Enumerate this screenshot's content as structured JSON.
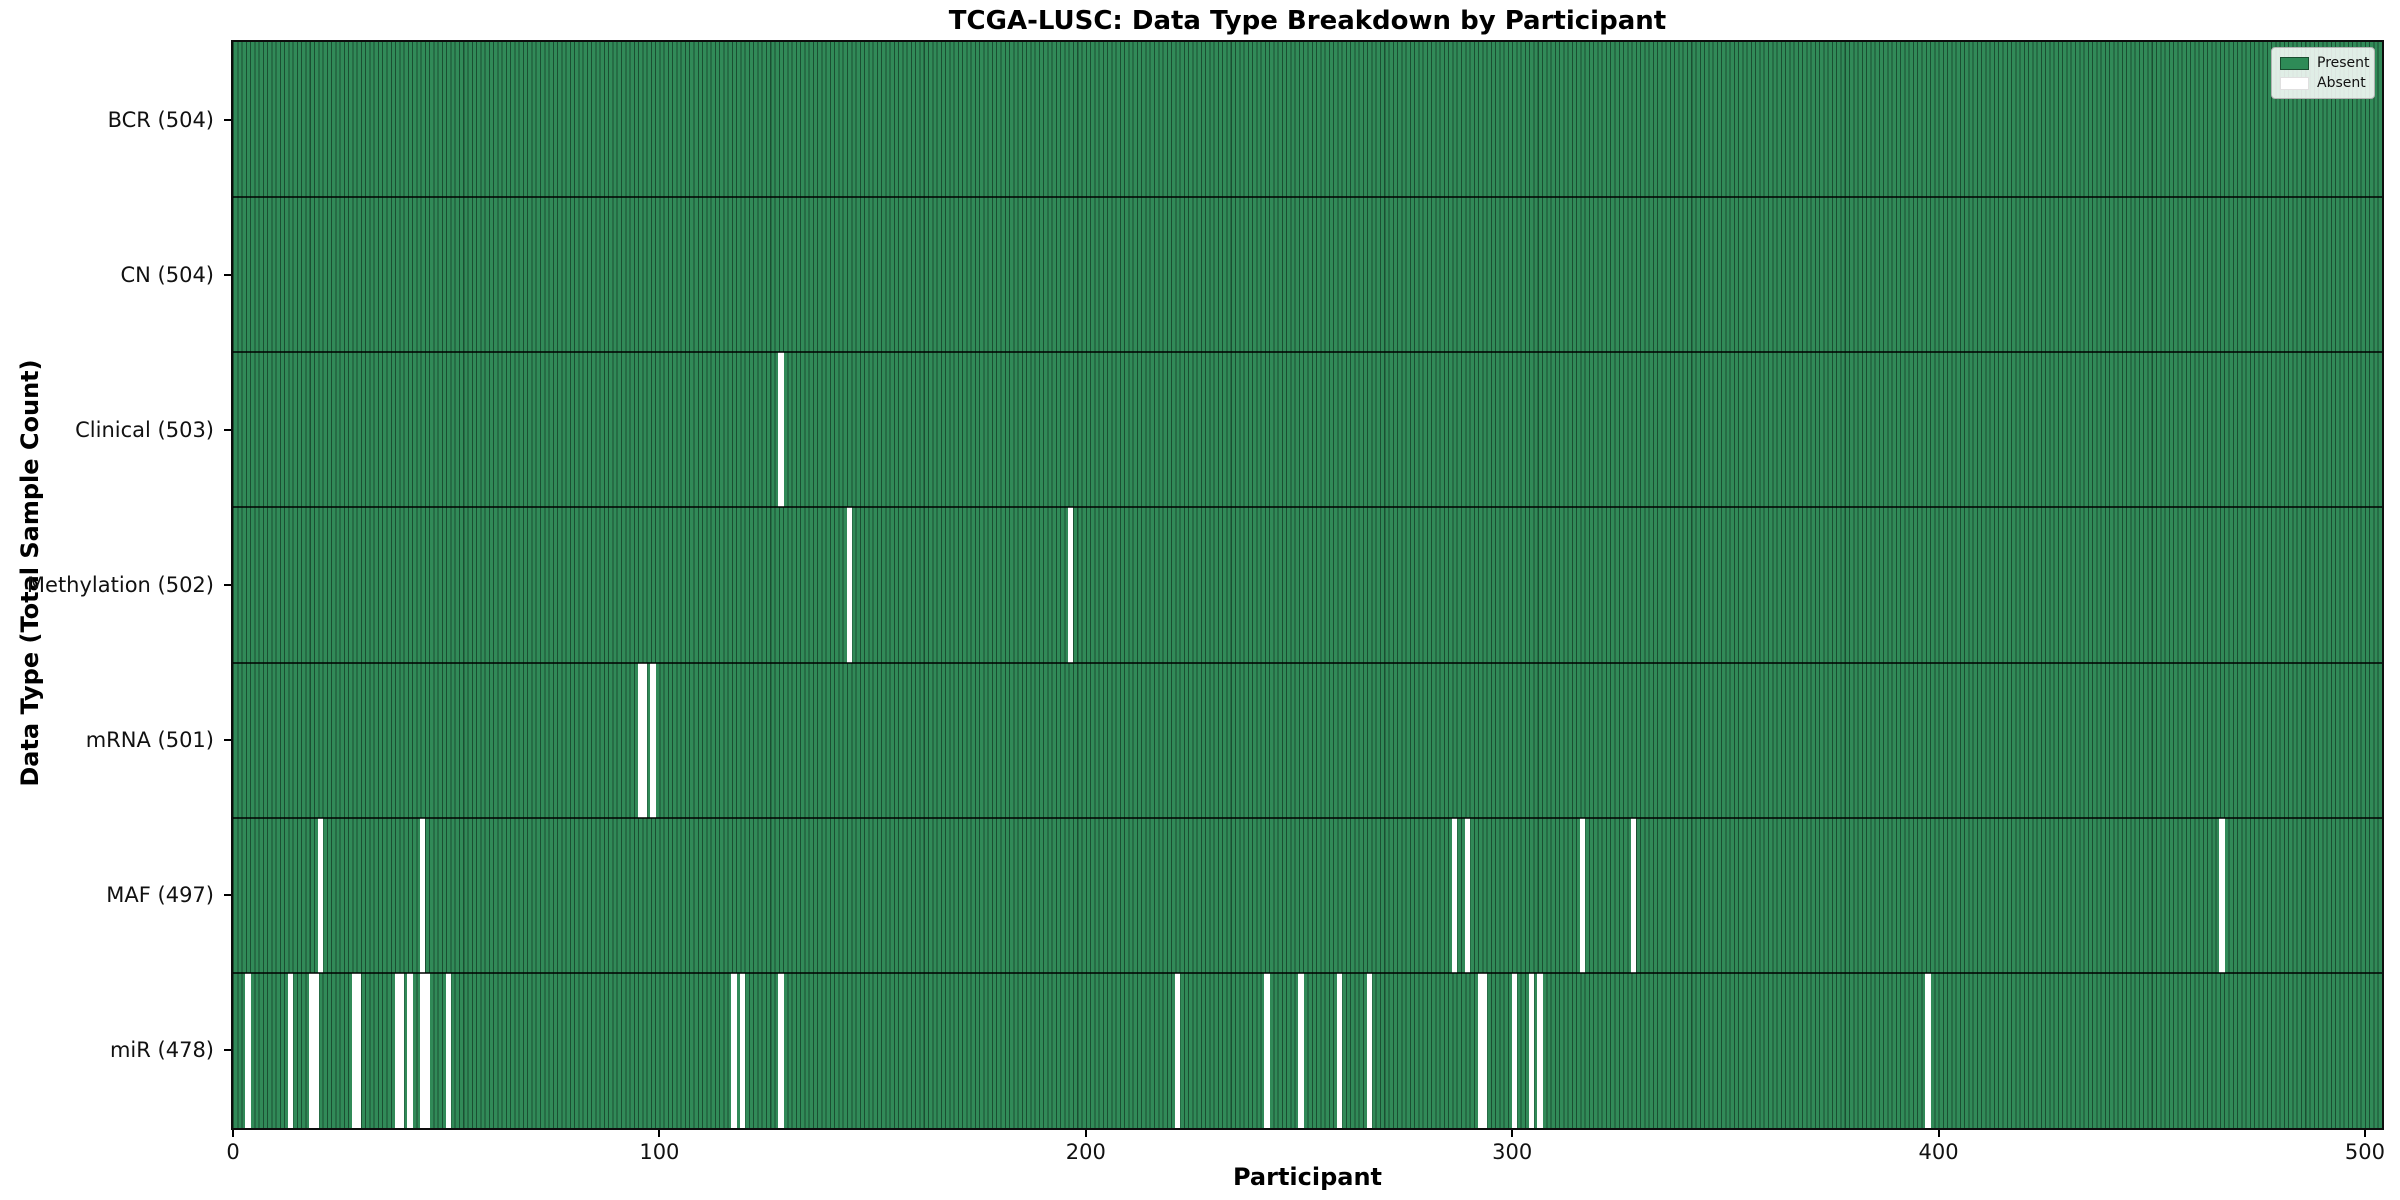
{
  "chart_data": {
    "type": "heatmap",
    "title": "TCGA-LUSC: Data Type Breakdown by Participant",
    "xlabel": "Participant",
    "ylabel": "Data Type (Total Sample Count)",
    "x_ticks": [
      0,
      100,
      200,
      300,
      400,
      500
    ],
    "xlim": [
      0,
      504
    ],
    "n_participants": 504,
    "grid": false,
    "legend_position": "upper right",
    "legend": [
      {
        "label": "Present",
        "color": "#2e8b57"
      },
      {
        "label": "Absent",
        "color": "#ffffff"
      }
    ],
    "colors": {
      "present": "#318a58",
      "absent": "#ffffff",
      "bar_edge": "rgba(8,30,18,0.55)",
      "row_separator": "rgba(0,0,0,0.75)",
      "spine": "#0d0d0d"
    },
    "rows": [
      {
        "label": "BCR (504)",
        "data_type": "BCR",
        "total_count": 504,
        "absent_participants": []
      },
      {
        "label": "CN (504)",
        "data_type": "CN",
        "total_count": 504,
        "absent_participants": []
      },
      {
        "label": "Clinical (503)",
        "data_type": "Clinical",
        "total_count": 503,
        "absent_participants": [
          128
        ]
      },
      {
        "label": "Methylation (502)",
        "data_type": "Methylation",
        "total_count": 502,
        "absent_participants": [
          144,
          196
        ]
      },
      {
        "label": "mRNA (501)",
        "data_type": "mRNA",
        "total_count": 501,
        "absent_participants": [
          95,
          96,
          98
        ]
      },
      {
        "label": "MAF (497)",
        "data_type": "MAF",
        "total_count": 497,
        "absent_participants": [
          20,
          44,
          286,
          289,
          316,
          328,
          466
        ]
      },
      {
        "label": "miR (478)",
        "data_type": "miR",
        "total_count": 478,
        "absent_participants": [
          3,
          13,
          18,
          19,
          28,
          29,
          38,
          39,
          41,
          44,
          45,
          50,
          117,
          119,
          128,
          221,
          242,
          250,
          259,
          266,
          292,
          293,
          300,
          304,
          306,
          397
        ]
      }
    ]
  },
  "layout_text": {
    "title": "TCGA-LUSC: Data Type Breakdown by Participant",
    "xlabel": "Participant",
    "ylabel": "Data Type (Total Sample Count)"
  }
}
